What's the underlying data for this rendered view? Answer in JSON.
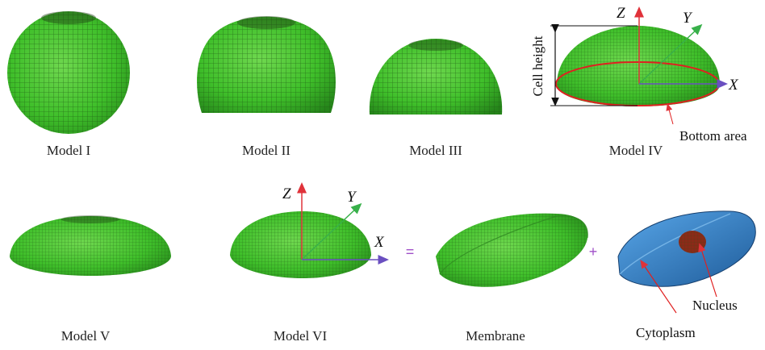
{
  "models": [
    {
      "caption": "Model I"
    },
    {
      "caption": "Model II"
    },
    {
      "caption": "Model III"
    },
    {
      "caption": "Model IV"
    },
    {
      "caption": "Model V"
    },
    {
      "caption": "Model VI"
    }
  ],
  "parts": {
    "membrane": "Membrane",
    "cytoplasm": "Cytoplasm",
    "nucleus": "Nucleus"
  },
  "annotations": {
    "cell_height": "Cell height",
    "bottom_area": "Bottom area"
  },
  "axes": {
    "x": "X",
    "y": "Y",
    "z": "Z"
  },
  "operators": {
    "equals": "=",
    "plus": "+"
  },
  "colors": {
    "mesh_green": "#3fbf2a",
    "mesh_line": "#1f5a14",
    "cytoplasm_blue": "#2f78c0",
    "nucleus_red": "#8a2a18",
    "axis_z": "#e0323a",
    "axis_y": "#38b04a",
    "axis_x": "#6a4fc0",
    "bottom_outline": "#e02020",
    "operator": "#a050c8"
  }
}
